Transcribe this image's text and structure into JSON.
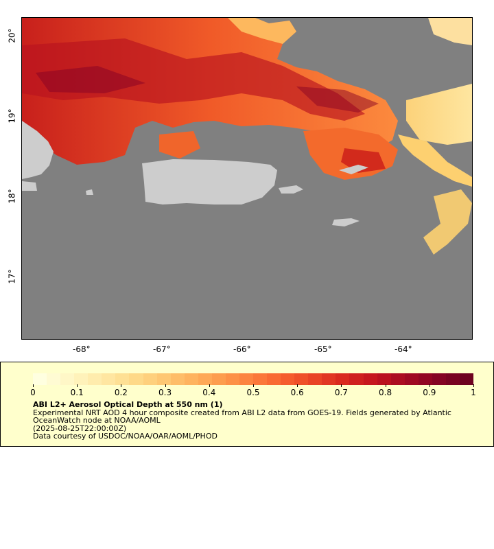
{
  "map": {
    "region": "Puerto Rico / Virgin Islands",
    "ocean_color": "#808080",
    "land_color": "#d0d0d0",
    "lon_labels": [
      "-68°",
      "-67°",
      "-66°",
      "-65°",
      "-64°"
    ],
    "lat_labels": [
      "20°",
      "19°",
      "18°",
      "17°"
    ]
  },
  "legend": {
    "colorbar_ticks": [
      "0",
      "0.1",
      "0.2",
      "0.3",
      "0.4",
      "0.5",
      "0.6",
      "0.7",
      "0.8",
      "0.9",
      "1"
    ],
    "colorbar_min": 0,
    "colorbar_max": 1,
    "colors": [
      "#ffffe0",
      "#fff6c4",
      "#ffeaa8",
      "#fedc8c",
      "#fec874",
      "#feb25e",
      "#fd9a4c",
      "#fc7e3c",
      "#f7602e",
      "#ea4426",
      "#d8281f",
      "#c2141e",
      "#a50a22",
      "#870424",
      "#6e0220"
    ],
    "title": "ABI L2+ Aerosol Optical Depth at 550 nm (1)",
    "description": "Experimental NRT AOD 4 hour composite created from ABI L2 data from GOES-19. Fields generated by Atlantic OceanWatch node at NOAA/AOML",
    "timestamp": "(2025-08-25T22:00:00Z)",
    "credit": "Data courtesy of USDOC/NOAA/OAR/AOML/PHOD"
  }
}
